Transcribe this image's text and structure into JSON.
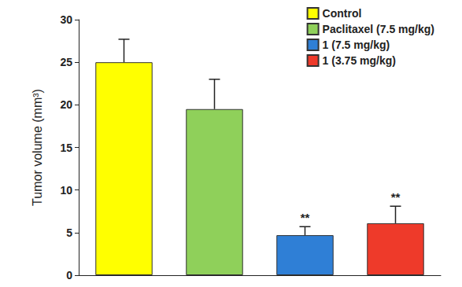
{
  "chart_data": {
    "type": "bar",
    "categories": [
      "Control",
      "Paclitaxel (7.5 mg/kg)",
      "1 (7.5 mg/kg)",
      "1 (3.75 mg/kg)"
    ],
    "values": [
      25,
      19.5,
      4.7,
      6.1
    ],
    "errors": [
      2.7,
      3.5,
      1.0,
      2.0
    ],
    "colors": [
      "#ffff00",
      "#8fd05a",
      "#2f7fd6",
      "#ee3a2a"
    ],
    "y_label": "Tumor volume (mm³)",
    "ylim": [
      0,
      30
    ],
    "yticks": [
      0,
      5,
      10,
      15,
      20,
      25,
      30
    ],
    "grid": false,
    "legend": "upper right",
    "tick_labels": "y",
    "annotations": [
      {
        "category": "1 (7.5 mg/kg)",
        "text": "**"
      },
      {
        "category": "1 (3.75 mg/kg)",
        "text": "**"
      }
    ]
  }
}
